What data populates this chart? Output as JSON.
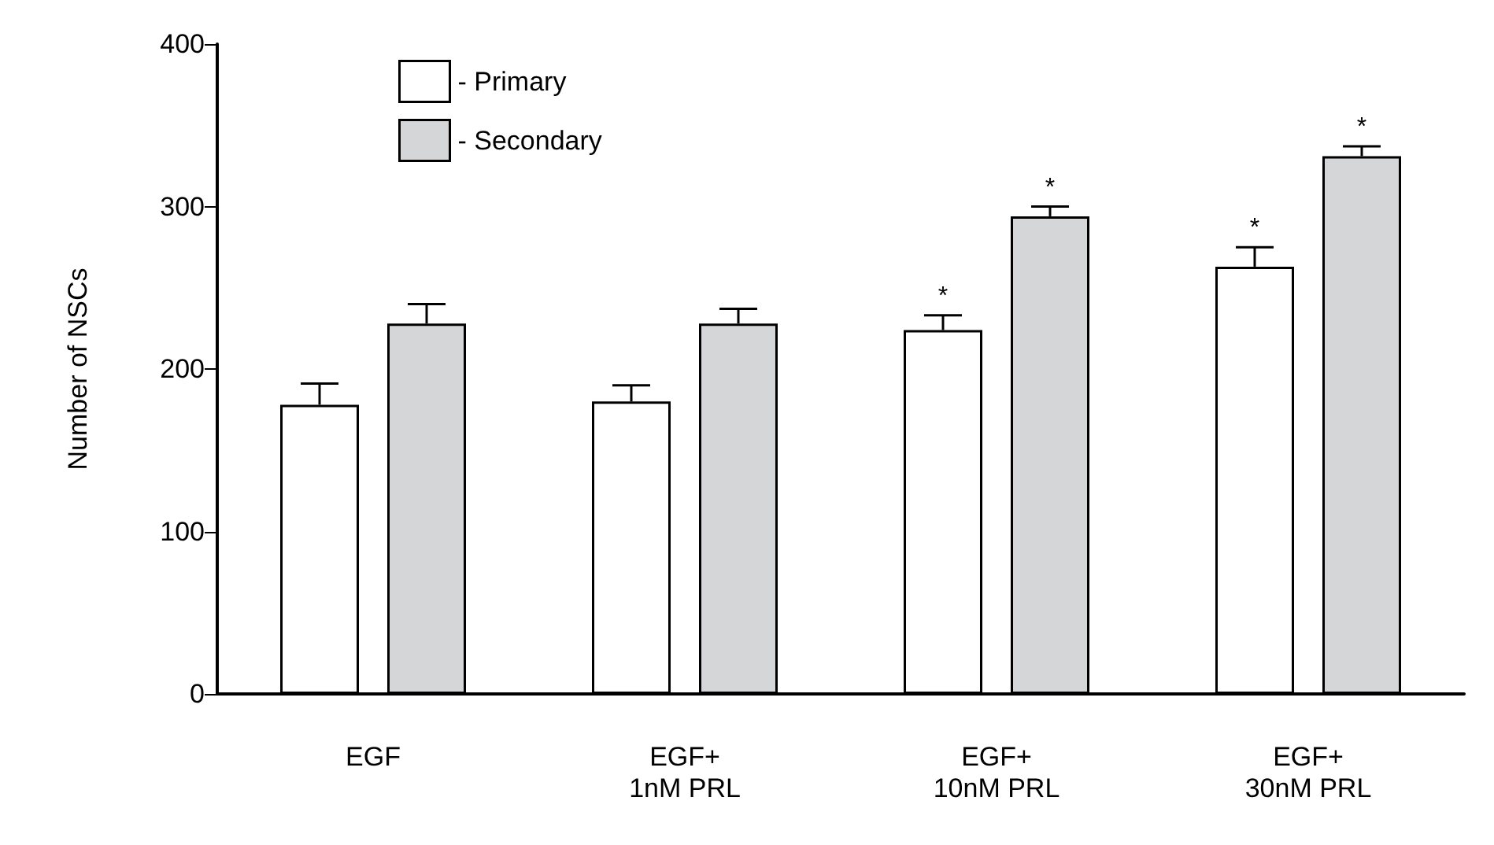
{
  "chart_data": {
    "type": "bar",
    "ylabel": "Number of NSCs",
    "categories": [
      "EGF",
      "EGF+\n1nM PRL",
      "EGF+\n10nM PRL",
      "EGF+\n30nM PRL"
    ],
    "series": [
      {
        "name": "- Primary",
        "color": "#ffffff",
        "values": [
          178,
          180,
          224,
          263
        ],
        "errors": [
          13,
          10,
          9,
          12
        ],
        "value_labels": [
          null,
          null,
          "*",
          "*"
        ]
      },
      {
        "name": "- Secondary",
        "color": "#d4d6d8",
        "values": [
          228,
          228,
          294,
          331
        ],
        "errors": [
          12,
          9,
          6,
          6
        ],
        "value_labels": [
          null,
          null,
          "*",
          "*"
        ]
      }
    ],
    "ylim": [
      0,
      400
    ],
    "yticks": [
      0,
      100,
      200,
      300,
      400
    ],
    "grid": false,
    "legend": "top left"
  }
}
